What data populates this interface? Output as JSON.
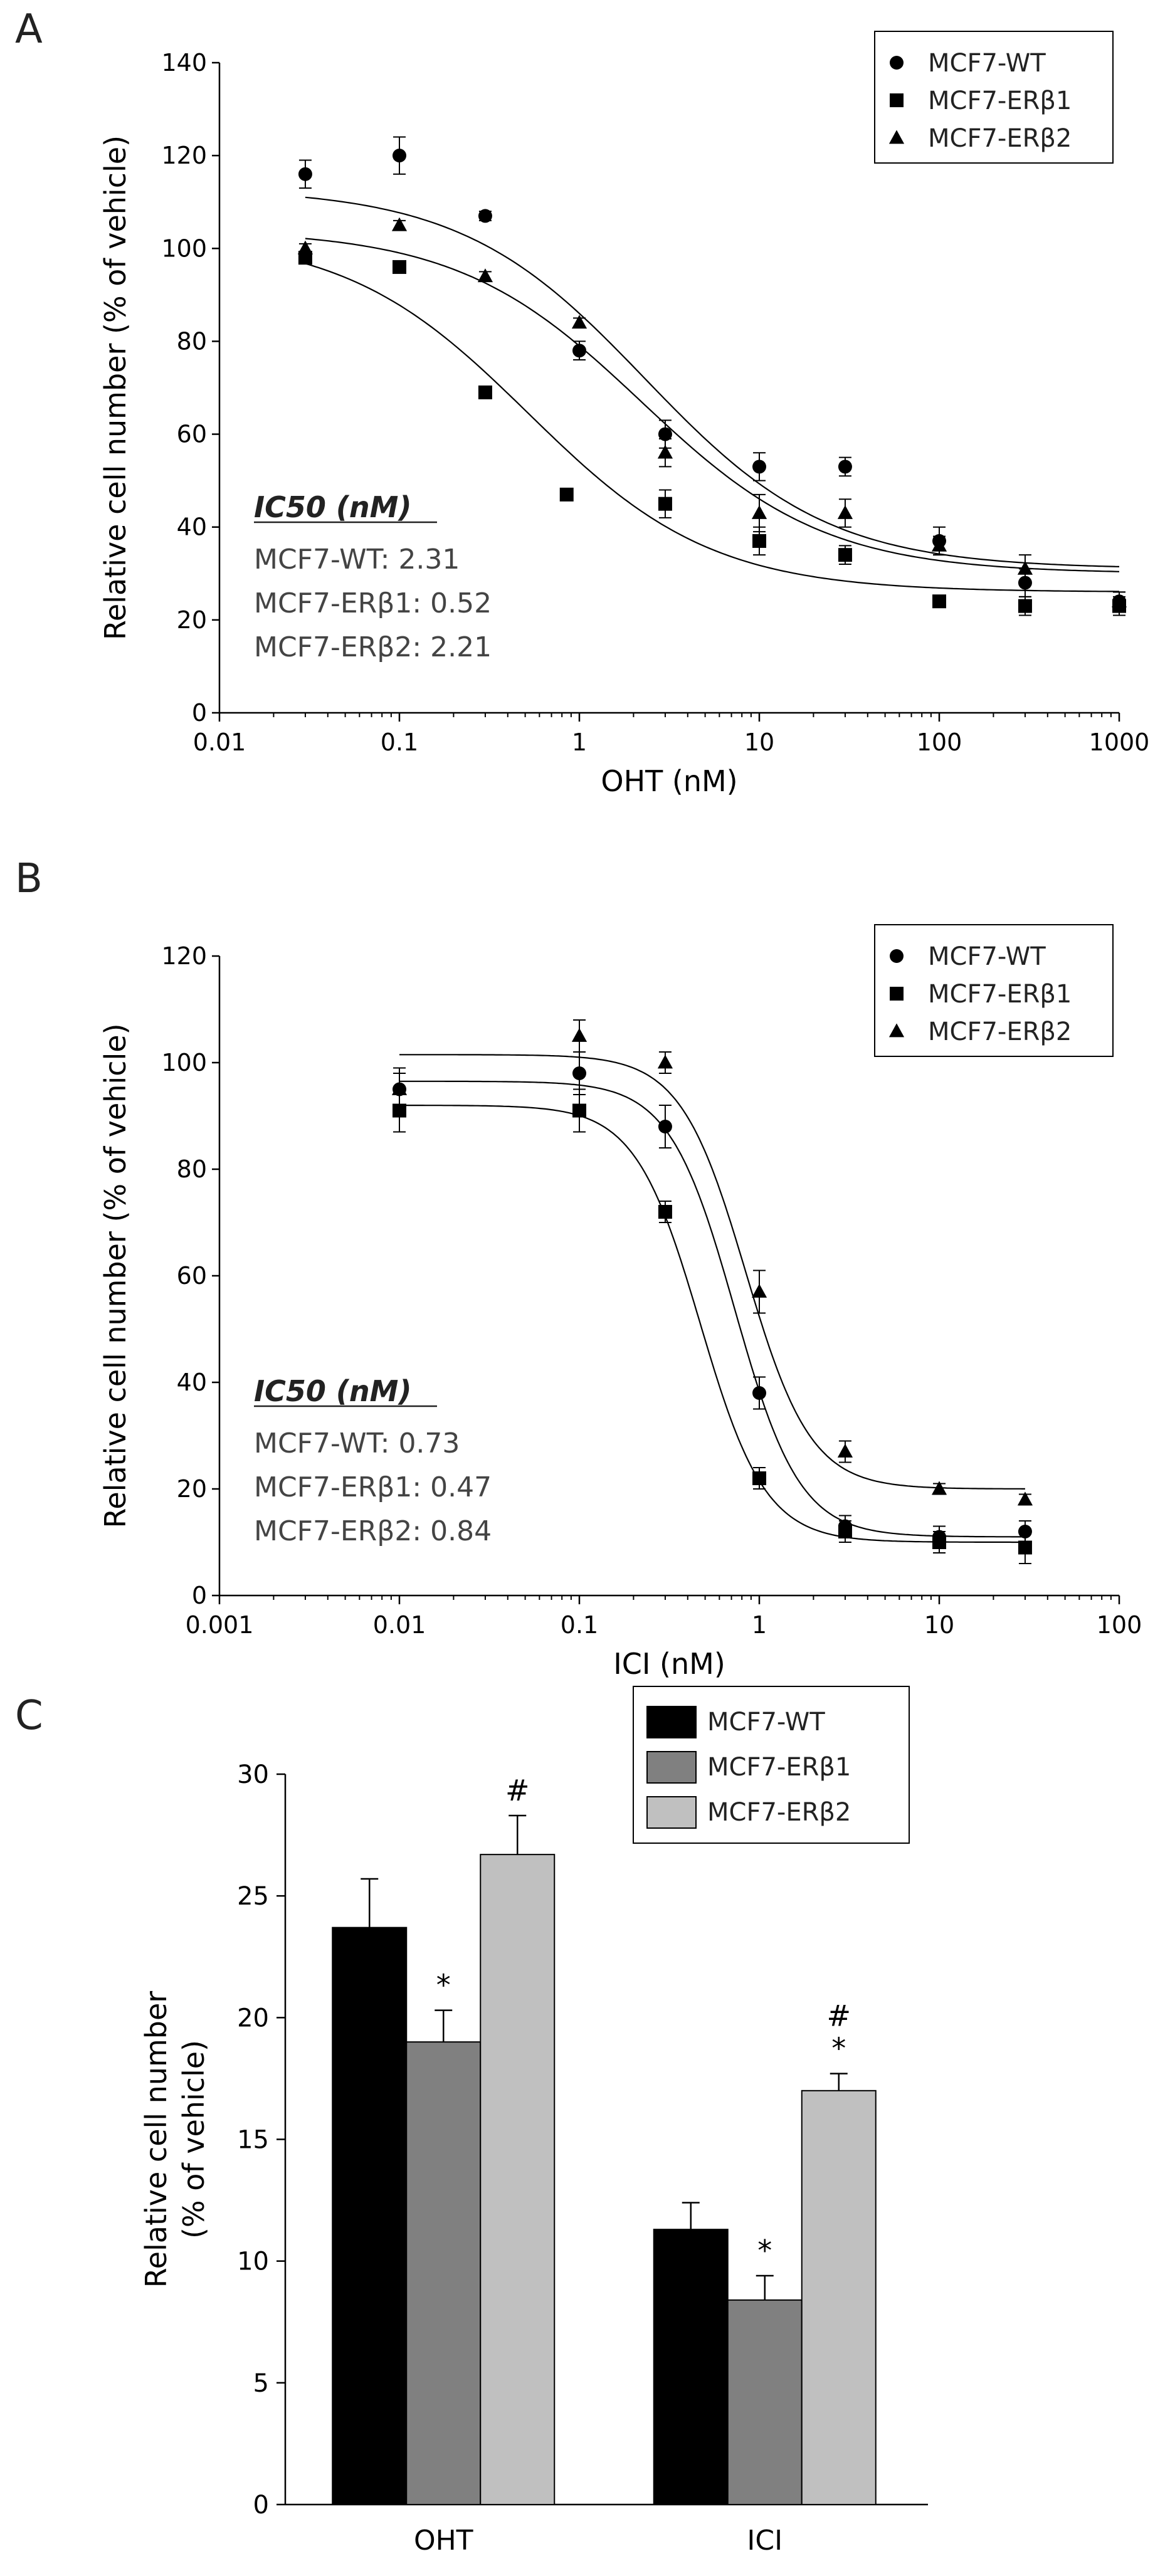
{
  "panels": {
    "a": "A",
    "b": "B",
    "c": "C"
  },
  "chart_data": [
    {
      "type": "scatter",
      "panel": "A",
      "xscale": "log",
      "xlim": [
        0.01,
        1000
      ],
      "ylim": [
        0,
        140
      ],
      "xticks": [
        "0.01",
        "0.1",
        "1",
        "10",
        "100",
        "1000"
      ],
      "yticks": [
        "0",
        "20",
        "40",
        "60",
        "80",
        "100",
        "120",
        "140"
      ],
      "xlabel": "OHT (nM)",
      "ylabel": "Relative cell number (% of vehicle)",
      "legend_position": "top-right",
      "annotation": {
        "heading": "IC50 (nM)",
        "lines": [
          "MCF7-WT: 2.31",
          "MCF7-ERβ1: 0.52",
          "MCF7-ERβ2: 2.21"
        ]
      },
      "series": [
        {
          "name": "MCF7-WT",
          "marker": "circle",
          "x": [
            0.03,
            0.1,
            0.3,
            1,
            3,
            10,
            30,
            100,
            300,
            1000
          ],
          "y": [
            116,
            120,
            107,
            78,
            60,
            53,
            53,
            37,
            28,
            24
          ],
          "err": [
            3,
            4,
            1,
            2,
            3,
            3,
            2,
            3,
            3,
            2
          ],
          "fit": {
            "top": 113,
            "bottom": 31,
            "ic50": 2.31,
            "hill": 0.85
          }
        },
        {
          "name": "MCF7-ERβ1",
          "marker": "square",
          "x": [
            0.03,
            0.1,
            0.3,
            0.85,
            3,
            10,
            30,
            100,
            300,
            1000
          ],
          "y": [
            98,
            96,
            69,
            47,
            45,
            37,
            34,
            24,
            23,
            23
          ],
          "err": [
            1,
            1,
            1,
            1,
            3,
            3,
            2,
            1,
            2,
            2
          ],
          "fit": {
            "top": 103,
            "bottom": 26,
            "ic50": 0.52,
            "hill": 0.85
          }
        },
        {
          "name": "MCF7-ERβ2",
          "marker": "triangle",
          "x": [
            0.03,
            0.1,
            0.3,
            1,
            3,
            10,
            30,
            100,
            300,
            1000
          ],
          "y": [
            100,
            105,
            94,
            84,
            56,
            43,
            43,
            36,
            31,
            24
          ],
          "err": [
            1,
            1,
            1,
            1,
            3,
            4,
            3,
            2,
            3,
            2
          ],
          "fit": {
            "top": 104,
            "bottom": 30,
            "ic50": 2.21,
            "hill": 0.85
          }
        }
      ]
    },
    {
      "type": "scatter",
      "panel": "B",
      "xscale": "log",
      "xlim": [
        0.001,
        100
      ],
      "ylim": [
        0,
        120
      ],
      "xticks": [
        "0.001",
        "0.01",
        "0.1",
        "1",
        "10",
        "100"
      ],
      "yticks": [
        "0",
        "20",
        "40",
        "60",
        "80",
        "100",
        "120"
      ],
      "xlabel": "ICI (nM)",
      "ylabel": "Relative cell number (% of vehicle)",
      "legend_position": "top-right",
      "annotation": {
        "heading": "IC50 (nM)",
        "lines": [
          "MCF7-WT: 0.73",
          "MCF7-ERβ1: 0.47",
          "MCF7-ERβ2: 0.84"
        ]
      },
      "series": [
        {
          "name": "MCF7-WT",
          "marker": "circle",
          "x": [
            0.01,
            0.1,
            0.3,
            1,
            3,
            10,
            30
          ],
          "y": [
            95,
            98,
            88,
            38,
            13,
            11,
            12
          ],
          "err": [
            4,
            4,
            4,
            3,
            2,
            2,
            2
          ],
          "fit": {
            "top": 96.5,
            "bottom": 11,
            "ic50": 0.73,
            "hill": 2.4
          }
        },
        {
          "name": "MCF7-ERβ1",
          "marker": "square",
          "x": [
            0.01,
            0.1,
            0.3,
            1,
            3,
            10,
            30
          ],
          "y": [
            91,
            91,
            72,
            22,
            12,
            10,
            9
          ],
          "err": [
            4,
            4,
            2,
            2,
            2,
            2,
            3
          ],
          "fit": {
            "top": 92,
            "bottom": 10,
            "ic50": 0.47,
            "hill": 2.4
          }
        },
        {
          "name": "MCF7-ERβ2",
          "marker": "triangle",
          "x": [
            0.01,
            0.1,
            0.3,
            1,
            3,
            10,
            30
          ],
          "y": [
            95,
            105,
            100,
            57,
            27,
            20,
            18
          ],
          "err": [
            3,
            3,
            2,
            4,
            2,
            1,
            1
          ],
          "fit": {
            "top": 101.5,
            "bottom": 20,
            "ic50": 0.84,
            "hill": 2.4
          }
        }
      ]
    },
    {
      "type": "bar",
      "panel": "C",
      "categories": [
        "OHT",
        "ICI"
      ],
      "ylim": [
        0,
        30
      ],
      "yticks": [
        "0",
        "5",
        "10",
        "15",
        "20",
        "25",
        "30"
      ],
      "xlabel": "",
      "ylabel": "Relative cell number",
      "ylabel2": "(% of vehicle)",
      "legend_position": "top-right",
      "series": [
        {
          "name": "MCF7-WT",
          "color": "#000000",
          "values": [
            23.7,
            11.3
          ],
          "err": [
            2.0,
            1.1
          ],
          "marks": [
            "",
            ""
          ]
        },
        {
          "name": "MCF7-ERβ1",
          "color": "#808080",
          "values": [
            19.0,
            8.4
          ],
          "err": [
            1.3,
            1.0
          ],
          "marks": [
            "*",
            "*"
          ]
        },
        {
          "name": "MCF7-ERβ2",
          "color": "#c0c0c0",
          "values": [
            26.7,
            17.0
          ],
          "err": [
            1.6,
            0.7
          ],
          "marks": [
            "#",
            "#\n*"
          ]
        }
      ]
    }
  ]
}
